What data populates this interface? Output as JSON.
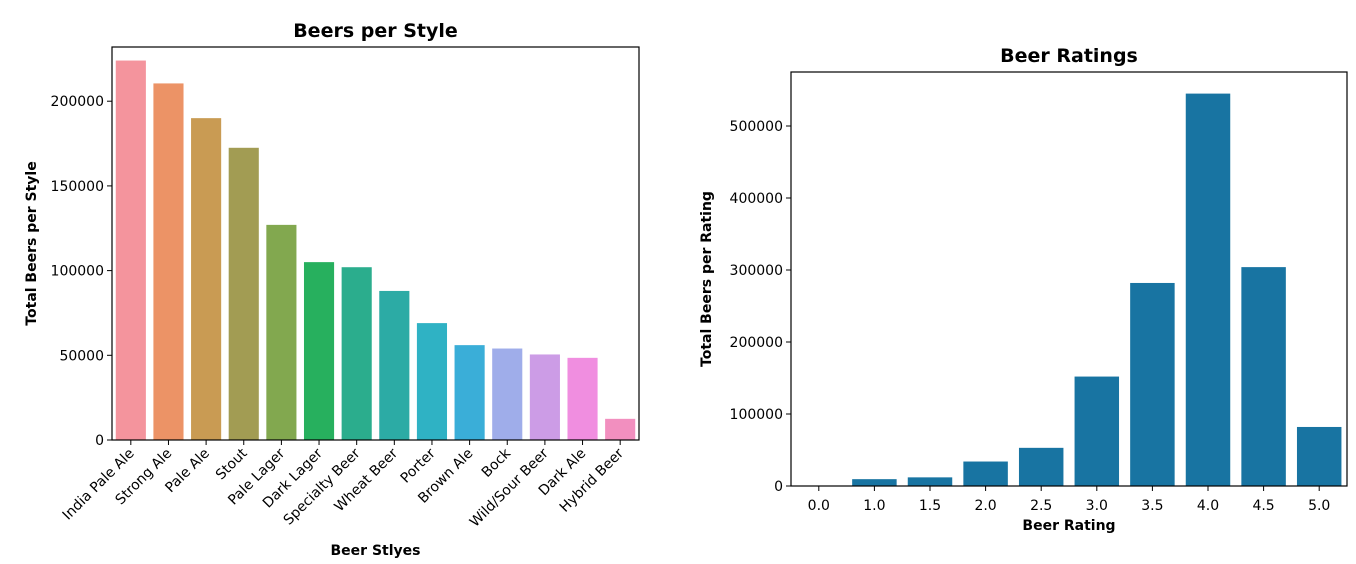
{
  "chart_data": [
    {
      "type": "bar",
      "title": "Beers per Style",
      "xlabel": "Beer Stlyes",
      "ylabel": "Total Beers per Style",
      "ylim": [
        0,
        232000
      ],
      "yticks": [
        0,
        50000,
        100000,
        150000,
        200000
      ],
      "categories": [
        "India Pale Ale",
        "Strong Ale",
        "Pale Ale",
        "Stout",
        "Pale Lager",
        "Dark Lager",
        "Specialty Beer",
        "Wheat Beer",
        "Porter",
        "Brown Ale",
        "Bock",
        "Wild/Sour Beer",
        "Dark Ale",
        "Hybrid Beer"
      ],
      "values": [
        224000,
        210500,
        190000,
        172500,
        127000,
        105000,
        102000,
        88000,
        69000,
        56000,
        54000,
        50500,
        48500,
        12500
      ],
      "colors": [
        "#f4949d",
        "#ec9366",
        "#c99b53",
        "#a29c53",
        "#82a84f",
        "#27b05e",
        "#2bad8d",
        "#2caba5",
        "#2fb2c4",
        "#3aaed8",
        "#9fadea",
        "#cc9ce6",
        "#f08ee0",
        "#f28fbf"
      ],
      "grid": false
    },
    {
      "type": "bar",
      "title": "Beer Ratings",
      "xlabel": "Beer Rating",
      "ylabel": "Total Beers per Rating",
      "ylim": [
        0,
        575000
      ],
      "yticks": [
        0,
        100000,
        200000,
        300000,
        400000,
        500000
      ],
      "categories": [
        "0.0",
        "1.0",
        "1.5",
        "2.0",
        "2.5",
        "3.0",
        "3.5",
        "4.0",
        "4.5",
        "5.0"
      ],
      "values": [
        500,
        9500,
        12000,
        34000,
        53000,
        152000,
        282000,
        545000,
        304000,
        82000
      ],
      "color": "#1874a2",
      "grid": false
    }
  ]
}
